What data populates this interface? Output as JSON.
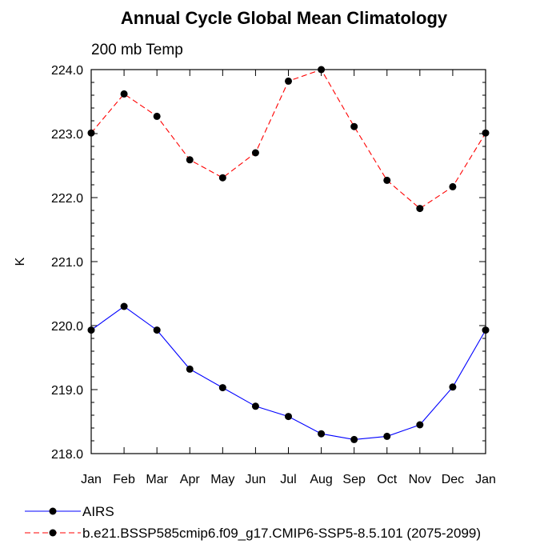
{
  "chart_data": {
    "type": "line",
    "title": "Annual Cycle Global Mean Climatology",
    "subtitle": "200 mb Temp",
    "xlabel": "",
    "ylabel": "K",
    "categories": [
      "Jan",
      "Feb",
      "Mar",
      "Apr",
      "May",
      "Jun",
      "Jul",
      "Aug",
      "Sep",
      "Oct",
      "Nov",
      "Dec",
      "Jan"
    ],
    "ylim": [
      218.0,
      224.0
    ],
    "yticks": [
      218.0,
      219.0,
      220.0,
      221.0,
      222.0,
      223.0,
      224.0
    ],
    "ytick_labels": [
      "218.0",
      "219.0",
      "220.0",
      "221.0",
      "222.0",
      "223.0",
      "224.0"
    ],
    "y_minor_step": 0.2,
    "grid": false,
    "legend_position": "bottom",
    "series": [
      {
        "name": "AIRS",
        "color": "#0000ff",
        "dash": "solid",
        "marker": "filled-circle",
        "values": [
          219.93,
          220.3,
          219.93,
          219.32,
          219.03,
          218.74,
          218.58,
          218.31,
          218.22,
          218.27,
          218.45,
          219.04,
          219.93
        ]
      },
      {
        "name": "b.e21.BSSP585cmip6.f09_g17.CMIP6-SSP5-8.5.101 (2075-2099)",
        "color": "#ff0000",
        "dash": "dashed",
        "marker": "filled-circle",
        "values": [
          223.01,
          223.62,
          223.27,
          222.59,
          222.31,
          222.7,
          223.82,
          224.0,
          223.11,
          222.27,
          221.83,
          222.17,
          223.01
        ]
      }
    ]
  }
}
